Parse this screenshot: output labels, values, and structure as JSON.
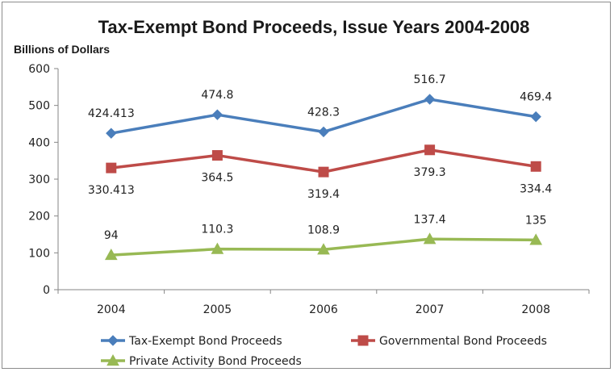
{
  "chart_data": {
    "type": "line",
    "title": "Tax-Exempt Bond Proceeds,  Issue Years  2004-2008",
    "ylabel": "Billions of Dollars",
    "xlabel": "",
    "categories": [
      "2004",
      "2005",
      "2006",
      "2007",
      "2008"
    ],
    "ylim": [
      0,
      600
    ],
    "yticks": [
      0,
      100,
      200,
      300,
      400,
      500,
      600
    ],
    "grid": false,
    "legend_position": "bottom",
    "series": [
      {
        "name": "Tax-Exempt Bond Proceeds",
        "values": [
          424.413,
          474.8,
          428.3,
          516.7,
          469.4
        ],
        "labels": [
          "424.413",
          "474.8",
          "428.3",
          "516.7",
          "469.4"
        ],
        "label_position": "above",
        "color": "#4a7ebb",
        "marker": "diamond"
      },
      {
        "name": "Governmental Bond Proceeds",
        "values": [
          330.413,
          364.5,
          319.4,
          379.3,
          334.4
        ],
        "labels": [
          "330.413",
          "364.5",
          "319.4",
          "379.3",
          "334.4"
        ],
        "label_position": "below",
        "color": "#be4b48",
        "marker": "square"
      },
      {
        "name": "Private Activity Bond Proceeds",
        "values": [
          94,
          110.3,
          108.9,
          137.4,
          135
        ],
        "labels": [
          "94",
          "110.3",
          "108.9",
          "137.4",
          "135"
        ],
        "label_position": "above",
        "color": "#98b954",
        "marker": "triangle"
      }
    ]
  }
}
